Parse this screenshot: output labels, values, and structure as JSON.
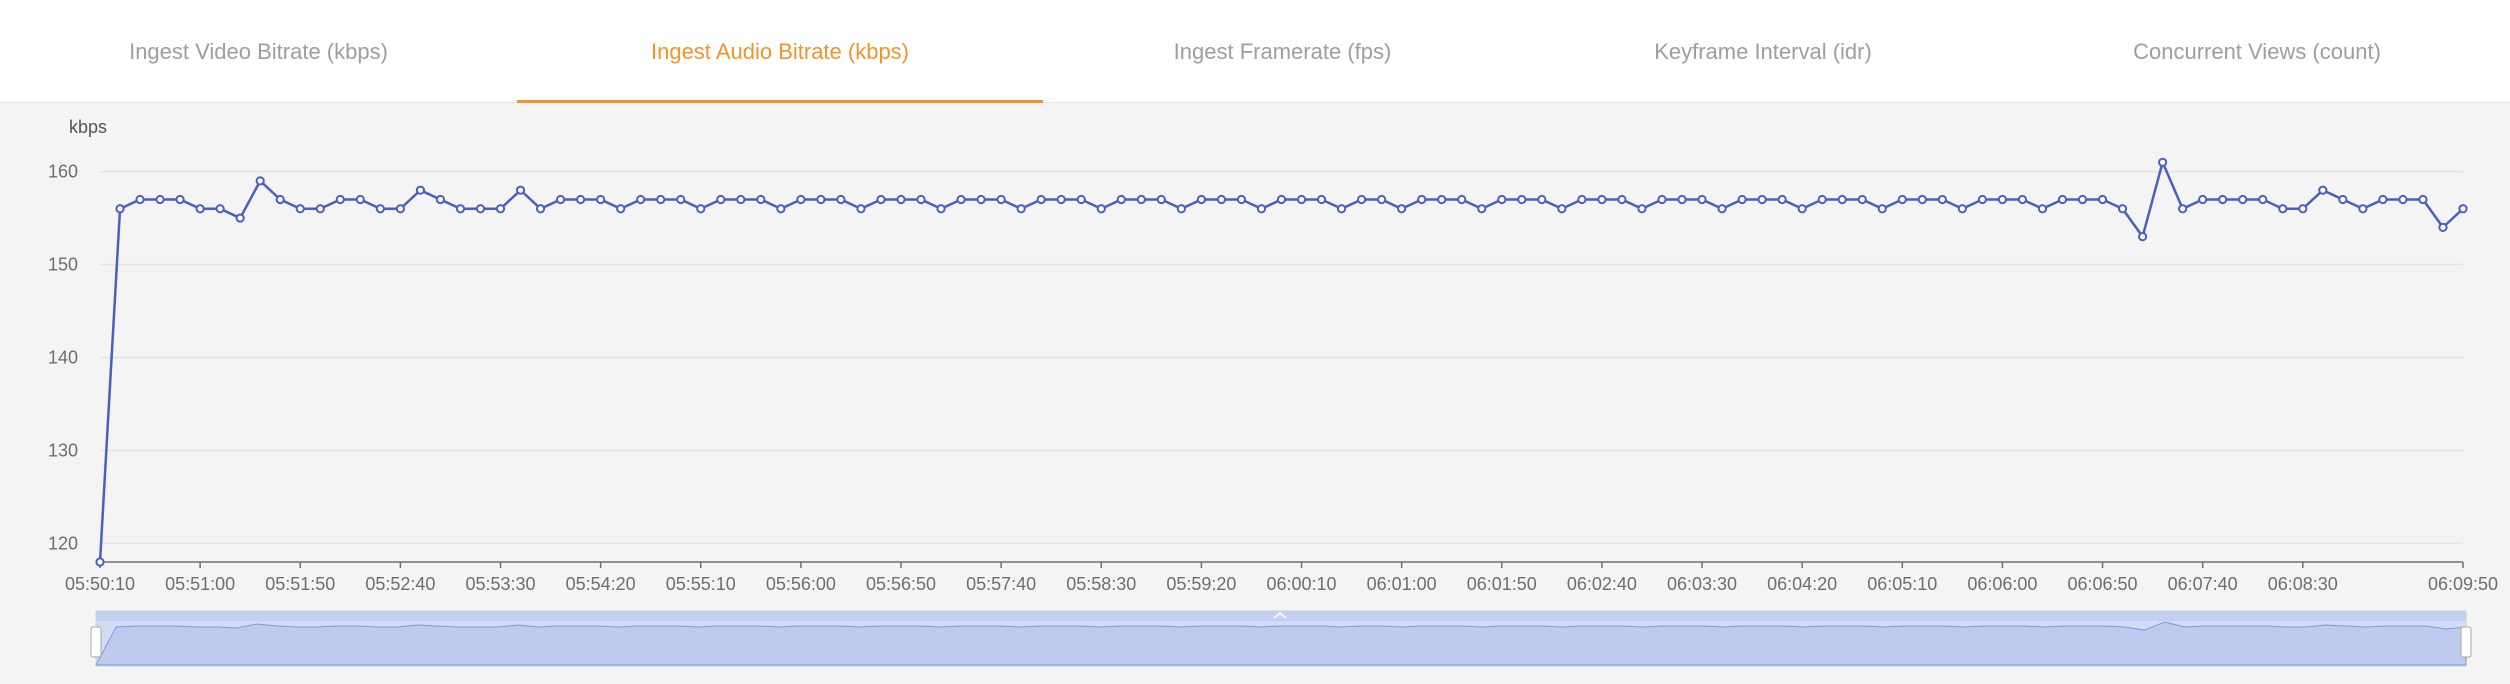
{
  "tabs": [
    {
      "label": "Ingest Video Bitrate (kbps)",
      "active": false
    },
    {
      "label": "Ingest Audio Bitrate (kbps)",
      "active": true
    },
    {
      "label": "Ingest Framerate (fps)",
      "active": false
    },
    {
      "label": "Keyframe Interval (idr)",
      "active": false
    },
    {
      "label": "Concurrent Views (count)",
      "active": false
    }
  ],
  "colors": {
    "accent": "#f0952a",
    "series": "#4a5fbf",
    "inactive_tab": "#9e9e9e",
    "zoom_fill": "#d3dcf5"
  },
  "chart_data": {
    "type": "line",
    "ylabel": "kbps",
    "ylim": [
      118,
      162
    ],
    "yticks": [
      120,
      130,
      140,
      150,
      160
    ],
    "x_start": "05:50:10",
    "x_step_seconds": 10,
    "xticks": [
      "05:50:10",
      "05:51:00",
      "05:51:50",
      "05:52:40",
      "05:53:30",
      "05:54:20",
      "05:55:10",
      "05:56:00",
      "05:56:50",
      "05:57:40",
      "05:58:30",
      "05:59:20",
      "06:00:10",
      "06:01:00",
      "06:01:50",
      "06:02:40",
      "06:03:30",
      "06:04:20",
      "06:05:10",
      "06:06:00",
      "06:06:50",
      "06:07:40",
      "06:08:30",
      "06:09:50"
    ],
    "grid": true,
    "series": [
      {
        "values": [
          118,
          156,
          157,
          157,
          157,
          156,
          156,
          155,
          159,
          157,
          156,
          156,
          157,
          157,
          156,
          156,
          158,
          157,
          156,
          156,
          156,
          158,
          156,
          157,
          157,
          157,
          156,
          157,
          157,
          157,
          156,
          157,
          157,
          157,
          156,
          157,
          157,
          157,
          156,
          157,
          157,
          157,
          156,
          157,
          157,
          157,
          156,
          157,
          157,
          157,
          156,
          157,
          157,
          157,
          156,
          157,
          157,
          157,
          156,
          157,
          157,
          157,
          156,
          157,
          157,
          156,
          157,
          157,
          157,
          156,
          157,
          157,
          157,
          156,
          157,
          157,
          157,
          156,
          157,
          157,
          157,
          156,
          157,
          157,
          157,
          156,
          157,
          157,
          157,
          156,
          157,
          157,
          157,
          156,
          157,
          157,
          157,
          156,
          157,
          157,
          157,
          156,
          153,
          161,
          156,
          157,
          157,
          157,
          157,
          156,
          156,
          158,
          157,
          156,
          157,
          157,
          157,
          154,
          156
        ]
      }
    ]
  }
}
